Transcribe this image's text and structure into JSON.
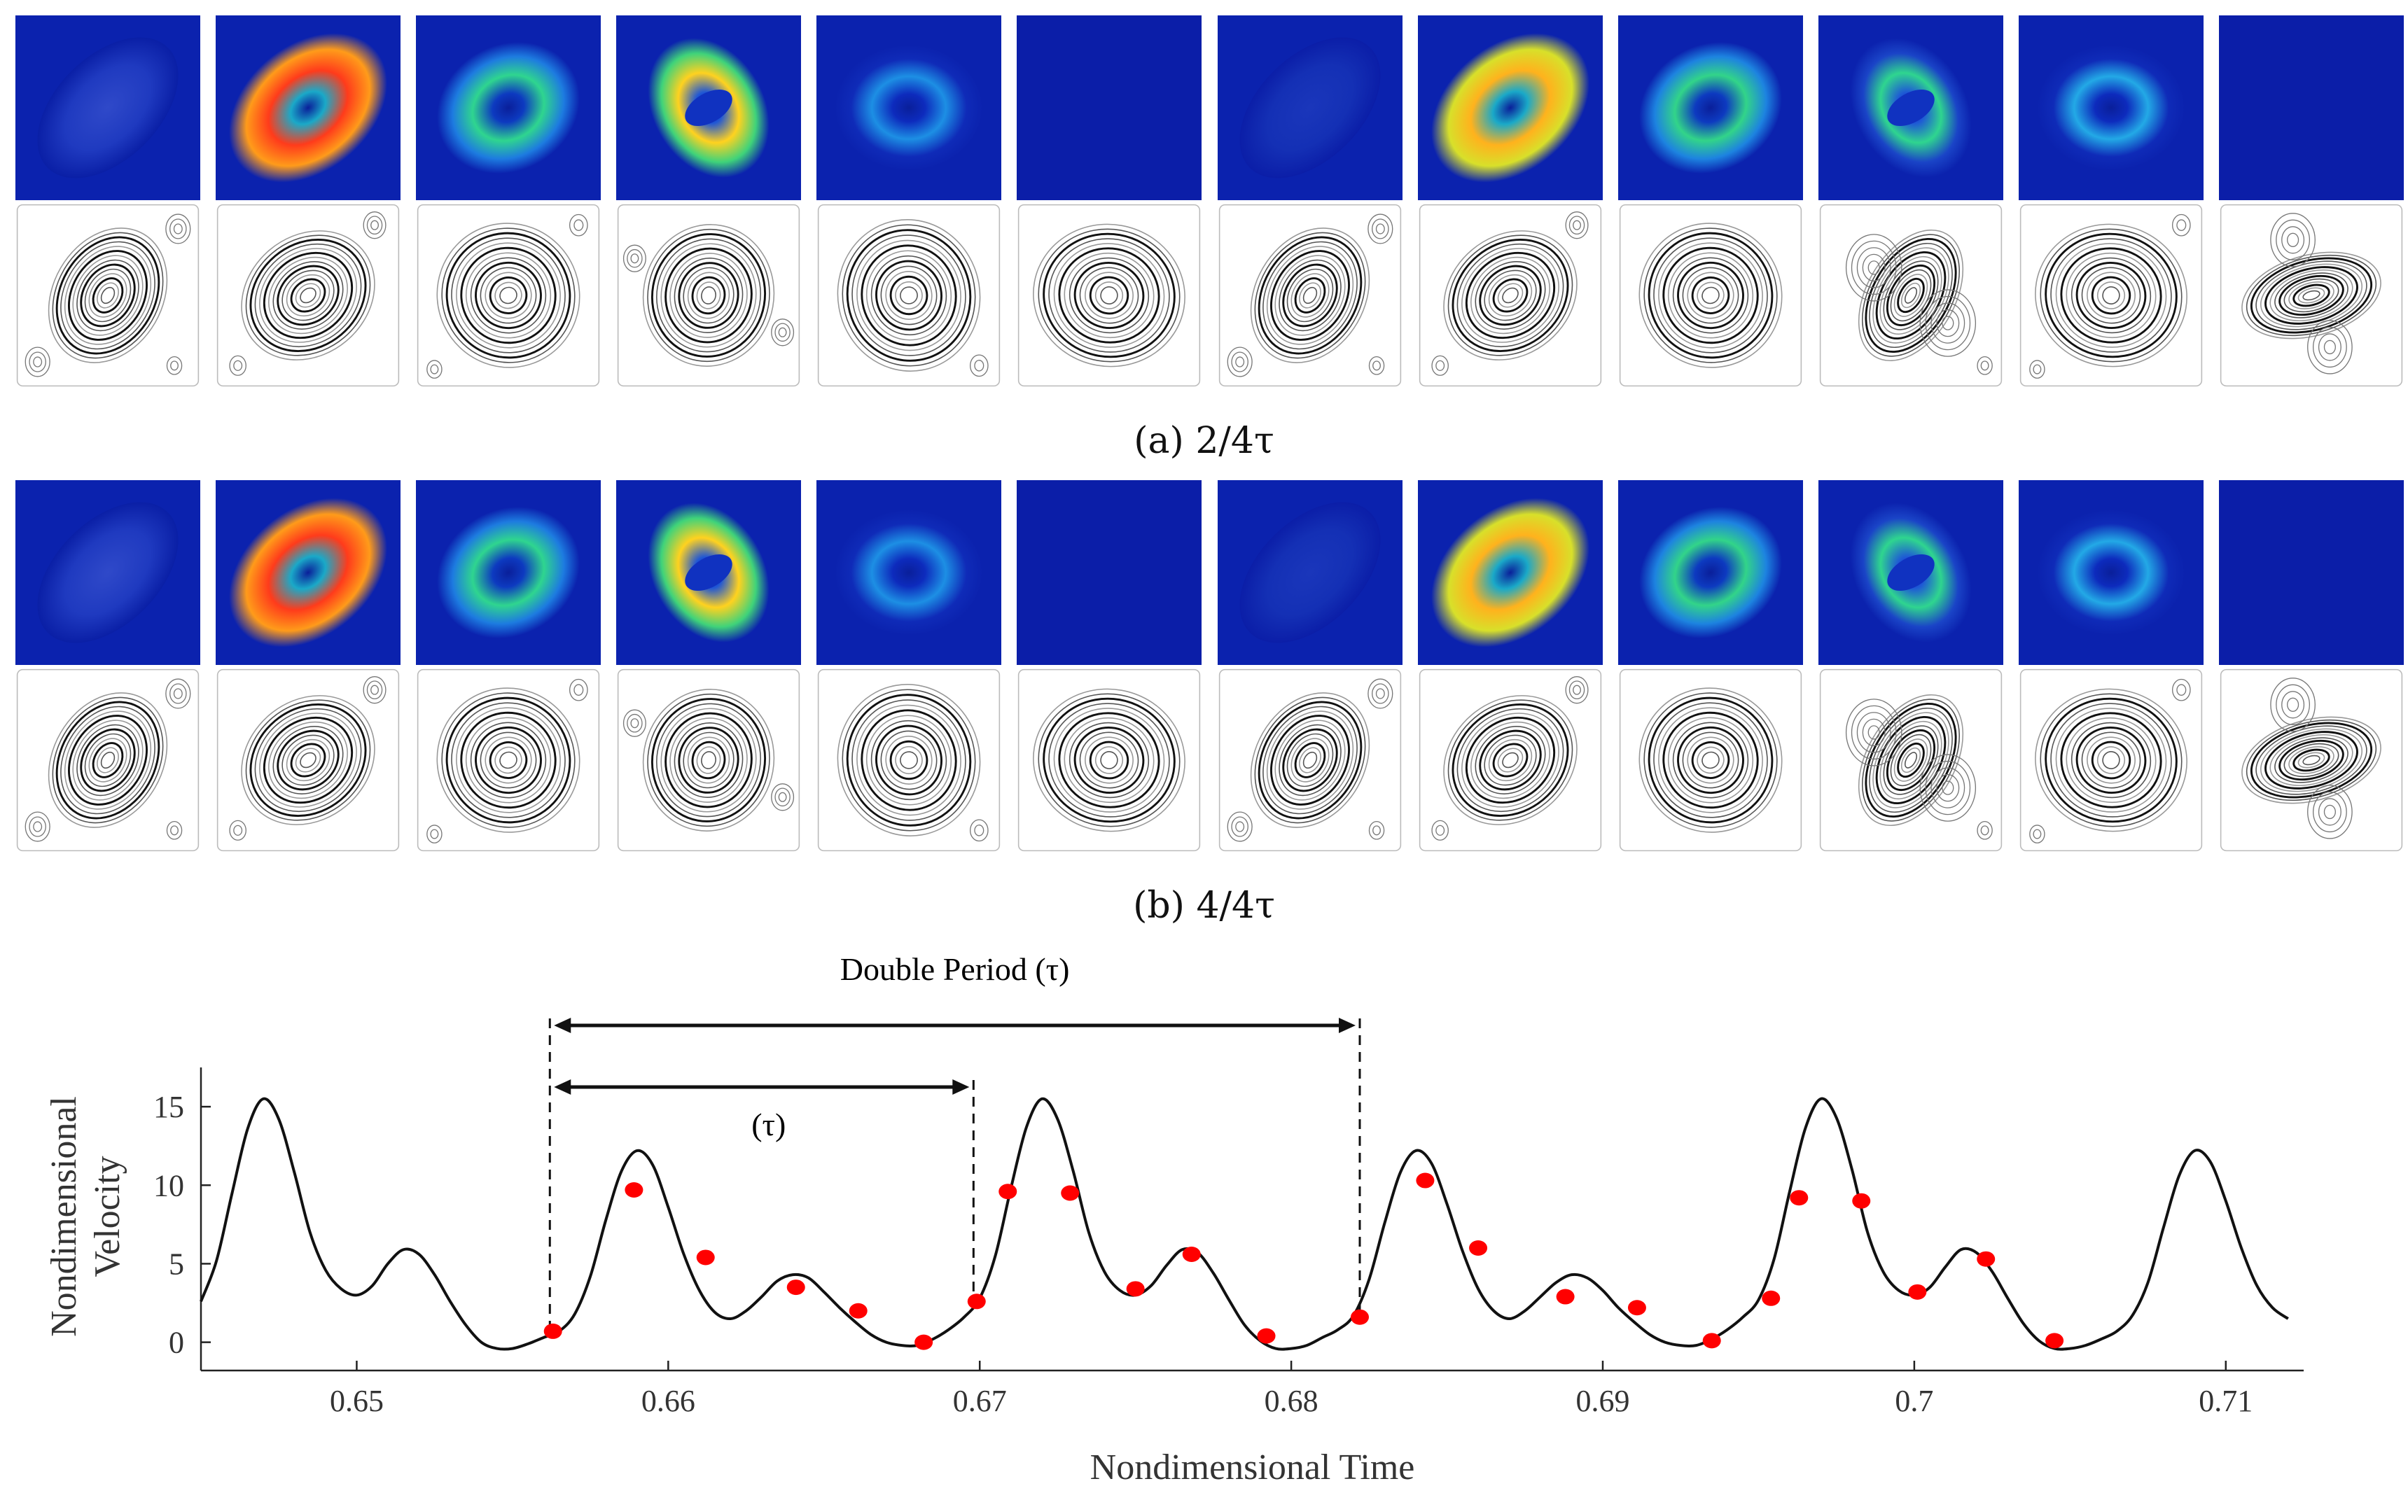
{
  "panels": [
    {
      "id": "a",
      "caption": "(a) 2/4τ",
      "energy": [
        {
          "inner": "#2f49c9",
          "mid": "#1f3ac0",
          "outer": "#0a1fa6",
          "shape": "blob",
          "angle": -45
        },
        {
          "inner": "#1aa9c8",
          "mid": "#ff3b1b",
          "outer": "#ff9b1a",
          "shape": "ringHot",
          "angle": -40
        },
        {
          "inner": "#0d3ac0",
          "mid": "#2fd58f",
          "outer": "#1d7be0",
          "shape": "ring",
          "angle": -30
        },
        {
          "inner": "#1f56d6",
          "mid": "#ffd21f",
          "outer": "#3fd37a",
          "shape": "lobes",
          "angle": 60
        },
        {
          "inner": "#0d2bbd",
          "mid": "#1d8fe4",
          "outer": "#0f2bb8",
          "shape": "ring",
          "angle": 0
        },
        {
          "inner": "#0b1ea8",
          "mid": "#0c22ad",
          "outer": "#0b1ea8",
          "shape": "flat",
          "angle": 0
        },
        {
          "inner": "#1a36bb",
          "mid": "#1430b5",
          "outer": "#0b1ea8",
          "shape": "blob",
          "angle": -45
        },
        {
          "inner": "#1aa9c8",
          "mid": "#ffb21d",
          "outer": "#d8e02a",
          "shape": "ringHot2",
          "angle": -40
        },
        {
          "inner": "#0d3ac0",
          "mid": "#32d489",
          "outer": "#1d83e0",
          "shape": "ring",
          "angle": -30
        },
        {
          "inner": "#1e58d6",
          "mid": "#2fd58f",
          "outer": "#1a44c7",
          "shape": "lobes2",
          "angle": 60
        },
        {
          "inner": "#0d2bbd",
          "mid": "#23a9e6",
          "outer": "#0f2bb8",
          "shape": "ring",
          "angle": 0
        },
        {
          "inner": "#0b1ea8",
          "mid": "#0b1ea8",
          "outer": "#0b1ea8",
          "shape": "flat",
          "angle": 0
        }
      ],
      "stream": [
        {
          "main_angle": -60,
          "aspect": 0.55,
          "vortices": "corners3"
        },
        {
          "main_angle": -40,
          "aspect": 0.62,
          "vortices": "corners2"
        },
        {
          "main_angle": -25,
          "aspect": 0.8,
          "vortices": "corner1"
        },
        {
          "main_angle": -80,
          "aspect": 0.7,
          "vortices": "side"
        },
        {
          "main_angle": -10,
          "aspect": 0.85,
          "vortices": "corner1b"
        },
        {
          "main_angle": -80,
          "aspect": 0.85,
          "vortices": "none"
        },
        {
          "main_angle": -60,
          "aspect": 0.55,
          "vortices": "corners3"
        },
        {
          "main_angle": -40,
          "aspect": 0.62,
          "vortices": "corners2"
        },
        {
          "main_angle": -25,
          "aspect": 0.8,
          "vortices": "none"
        },
        {
          "main_angle": -60,
          "aspect": 0.4,
          "vortices": "pair"
        },
        {
          "main_angle": -80,
          "aspect": 0.85,
          "vortices": "corner1"
        },
        {
          "main_angle": -15,
          "aspect": 0.35,
          "vortices": "stack"
        }
      ]
    },
    {
      "id": "b",
      "caption": "(b) 4/4τ",
      "energy": [
        {
          "inner": "#2f49c9",
          "mid": "#1f3ac0",
          "outer": "#0a1fa6",
          "shape": "blob",
          "angle": -45
        },
        {
          "inner": "#1aa9c8",
          "mid": "#ff3b1b",
          "outer": "#ff9b1a",
          "shape": "ringHot",
          "angle": -40
        },
        {
          "inner": "#0d3ac0",
          "mid": "#2fd58f",
          "outer": "#1d7be0",
          "shape": "ring",
          "angle": -30
        },
        {
          "inner": "#1f56d6",
          "mid": "#ffd21f",
          "outer": "#3fd37a",
          "shape": "lobes",
          "angle": 60
        },
        {
          "inner": "#0d2bbd",
          "mid": "#1d8fe4",
          "outer": "#0f2bb8",
          "shape": "ring",
          "angle": 0
        },
        {
          "inner": "#0b1ea8",
          "mid": "#0c22ad",
          "outer": "#0b1ea8",
          "shape": "flat",
          "angle": 0
        },
        {
          "inner": "#1a36bb",
          "mid": "#1430b5",
          "outer": "#0b1ea8",
          "shape": "blob",
          "angle": -45
        },
        {
          "inner": "#1aa9c8",
          "mid": "#ffb21d",
          "outer": "#d8e02a",
          "shape": "ringHot2",
          "angle": -40
        },
        {
          "inner": "#0d3ac0",
          "mid": "#32d489",
          "outer": "#1d83e0",
          "shape": "ring",
          "angle": -30
        },
        {
          "inner": "#1e58d6",
          "mid": "#2fd58f",
          "outer": "#1a44c7",
          "shape": "lobes2",
          "angle": 60
        },
        {
          "inner": "#0d2bbd",
          "mid": "#23a9e6",
          "outer": "#0f2bb8",
          "shape": "ring",
          "angle": 0
        },
        {
          "inner": "#0b1ea8",
          "mid": "#0b1ea8",
          "outer": "#0b1ea8",
          "shape": "flat",
          "angle": 0
        }
      ],
      "stream": [
        {
          "main_angle": -60,
          "aspect": 0.55,
          "vortices": "corners3"
        },
        {
          "main_angle": -40,
          "aspect": 0.62,
          "vortices": "corners2"
        },
        {
          "main_angle": -25,
          "aspect": 0.8,
          "vortices": "corner1"
        },
        {
          "main_angle": -80,
          "aspect": 0.7,
          "vortices": "side"
        },
        {
          "main_angle": -10,
          "aspect": 0.85,
          "vortices": "corner1b"
        },
        {
          "main_angle": -80,
          "aspect": 0.85,
          "vortices": "none"
        },
        {
          "main_angle": -60,
          "aspect": 0.55,
          "vortices": "corners3"
        },
        {
          "main_angle": -40,
          "aspect": 0.62,
          "vortices": "corners2"
        },
        {
          "main_angle": -25,
          "aspect": 0.8,
          "vortices": "none"
        },
        {
          "main_angle": -60,
          "aspect": 0.4,
          "vortices": "pair"
        },
        {
          "main_angle": -80,
          "aspect": 0.85,
          "vortices": "corner1"
        },
        {
          "main_angle": -15,
          "aspect": 0.35,
          "vortices": "stack"
        }
      ]
    }
  ],
  "chart_data": {
    "type": "line",
    "xlabel": "Nondimensional Time",
    "ylabel_lines": [
      "Nondimensional",
      "Velocity"
    ],
    "xlim": [
      0.645,
      0.7125
    ],
    "ylim": [
      -1.8,
      17.5
    ],
    "xticks": [
      0.65,
      0.66,
      0.67,
      0.68,
      0.69,
      0.7,
      0.71
    ],
    "xtick_labels": [
      "0.65",
      "0.66",
      "0.67",
      "0.68",
      "0.69",
      "0.7",
      "0.71"
    ],
    "yticks": [
      0,
      5,
      10,
      15
    ],
    "ytick_labels": [
      "0",
      "5",
      "10",
      "15"
    ],
    "series": [
      {
        "name": "velocity",
        "color": "#111111",
        "x": [
          0.645,
          0.6455,
          0.646,
          0.6465,
          0.647,
          0.6475,
          0.648,
          0.6485,
          0.649,
          0.6495,
          0.65,
          0.6505,
          0.651,
          0.6515,
          0.652,
          0.6525,
          0.653,
          0.6535,
          0.654,
          0.6545,
          0.655,
          0.6555,
          0.656,
          0.6565,
          0.657,
          0.6575,
          0.658,
          0.6585,
          0.659,
          0.6595,
          0.66,
          0.6605,
          0.661,
          0.6615,
          0.662,
          0.6625,
          0.663,
          0.6635,
          0.664,
          0.6645,
          0.665,
          0.6655,
          0.666,
          0.6665,
          0.667,
          0.6675,
          0.668,
          0.6685,
          0.669,
          0.6695,
          0.67,
          0.6705,
          0.671,
          0.6715,
          0.672,
          0.6725,
          0.673,
          0.6735,
          0.674,
          0.6745,
          0.675,
          0.6755,
          0.676,
          0.6765,
          0.677,
          0.6775,
          0.678,
          0.6785,
          0.679,
          0.6795,
          0.68,
          0.6805,
          0.681,
          0.6815,
          0.682,
          0.6825,
          0.683,
          0.6835,
          0.684,
          0.6845,
          0.685,
          0.6855,
          0.686,
          0.6865,
          0.687,
          0.6875,
          0.688,
          0.6885,
          0.689,
          0.6895,
          0.69,
          0.6905,
          0.691,
          0.6915,
          0.692,
          0.6925,
          0.693,
          0.6935,
          0.694,
          0.6945,
          0.695,
          0.6955,
          0.696,
          0.6965,
          0.697,
          0.6975,
          0.698,
          0.6985,
          0.699,
          0.6995,
          0.7,
          0.7005,
          0.701,
          0.7015,
          0.702,
          0.7025,
          0.703,
          0.7035,
          0.704,
          0.7045,
          0.705,
          0.7055,
          0.706,
          0.7065,
          0.707,
          0.7075,
          0.708,
          0.7085,
          0.709,
          0.7095,
          0.71,
          0.7105,
          0.711,
          0.7115,
          0.712
        ],
        "y": [
          2.6,
          5.2,
          9.5,
          13.6,
          15.5,
          14.2,
          10.8,
          7.0,
          4.6,
          3.4,
          3.0,
          3.6,
          5.0,
          5.9,
          5.6,
          4.3,
          2.6,
          1.1,
          0.0,
          -0.4,
          -0.4,
          -0.1,
          0.3,
          0.7,
          1.8,
          4.2,
          7.8,
          10.9,
          12.2,
          11.3,
          8.6,
          5.6,
          3.3,
          1.9,
          1.5,
          2.0,
          2.9,
          3.9,
          4.3,
          4.1,
          3.2,
          2.2,
          1.3,
          0.5,
          0.0,
          -0.2,
          -0.2,
          0.2,
          0.8,
          1.6,
          2.8,
          5.5,
          9.8,
          13.7,
          15.5,
          14.2,
          10.9,
          7.0,
          4.5,
          3.3,
          3.0,
          3.6,
          4.9,
          5.9,
          5.7,
          4.4,
          2.7,
          1.1,
          0.1,
          -0.4,
          -0.4,
          -0.2,
          0.3,
          0.8,
          1.7,
          4.0,
          7.6,
          10.8,
          12.2,
          11.4,
          8.8,
          5.8,
          3.4,
          2.0,
          1.5,
          2.0,
          2.9,
          3.8,
          4.3,
          4.1,
          3.3,
          2.2,
          1.3,
          0.5,
          0.0,
          -0.2,
          -0.2,
          0.2,
          0.8,
          1.6,
          2.7,
          5.3,
          9.6,
          13.6,
          15.5,
          14.3,
          11.0,
          7.0,
          4.5,
          3.3,
          3.0,
          3.5,
          4.8,
          5.9,
          5.7,
          4.5,
          2.8,
          1.2,
          0.1,
          -0.4,
          -0.4,
          -0.2,
          0.2,
          0.7,
          1.7,
          3.8,
          7.3,
          10.6,
          12.2,
          11.5,
          9.0,
          6.0,
          3.6,
          2.2,
          1.5
        ]
      }
    ],
    "markers": {
      "color": "#ff0000",
      "x": [
        0.6563,
        0.6589,
        0.6612,
        0.6641,
        0.6661,
        0.6682,
        0.6699,
        0.6709,
        0.6729,
        0.675,
        0.6768,
        0.6792,
        0.6822,
        0.6843,
        0.686,
        0.6888,
        0.6911,
        0.6935,
        0.6954,
        0.6963,
        0.6983,
        0.7001,
        0.7023,
        0.7045
      ],
      "y": [
        0.7,
        9.7,
        5.4,
        3.5,
        2.0,
        0.0,
        2.6,
        9.6,
        9.5,
        3.4,
        5.6,
        0.4,
        1.6,
        10.3,
        6.0,
        2.9,
        2.2,
        0.1,
        2.8,
        9.2,
        9.0,
        3.2,
        5.3,
        0.1
      ]
    },
    "annotations": {
      "double_period_label": "Double Period (τ)",
      "period_label": "(τ)",
      "double_period": {
        "start": 0.6562,
        "end": 0.6822
      },
      "period": {
        "start": 0.6562,
        "end": 0.6698
      }
    }
  }
}
